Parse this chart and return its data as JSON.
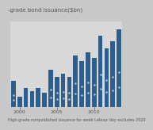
{
  "title": "-grade bond issuance($bn)",
  "footnote": "High-grade nonpublished issuance for week Labour day excludes 2020",
  "bar_values": [
    18,
    7,
    13,
    11,
    13,
    10,
    26,
    21,
    23,
    21,
    36,
    32,
    38,
    34,
    50,
    41,
    46,
    54
  ],
  "bar_color": "#2e5f8c",
  "dot_color": "#b0c4d8",
  "x_tick_positions": [
    1,
    7,
    13
  ],
  "x_tick_labels": [
    "2000",
    "2005",
    "2010"
  ],
  "ylim": [
    0,
    60
  ],
  "background_color": "#c8c8c8",
  "plot_bg_color": "#d8d8d8",
  "grid_color": "#ffffff",
  "text_color": "#555555",
  "title_fontsize": 5.0,
  "footnote_fontsize": 3.5,
  "tick_fontsize": 4.5,
  "n_bars": 18
}
